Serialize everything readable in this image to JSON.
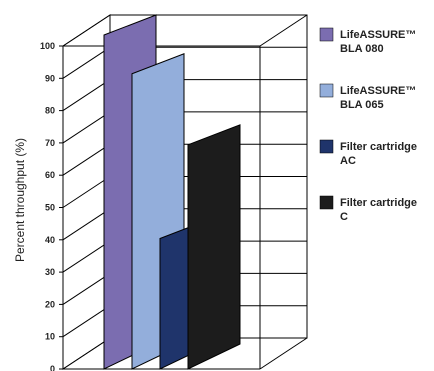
{
  "chart_data": {
    "type": "bar",
    "style": "3d-clustered",
    "ylabel": "Percent throughput (%)",
    "ylim": [
      0,
      100
    ],
    "yticks": [
      0,
      10,
      20,
      30,
      40,
      50,
      60,
      70,
      80,
      90,
      100
    ],
    "grid": true,
    "legend_position": "right",
    "series": [
      {
        "name": "LifeASSURE™ BLA 080",
        "legend_lines": [
          "LifeASSURE™",
          "BLA 080"
        ],
        "value": 100,
        "color": "#7b6db0"
      },
      {
        "name": "LifeASSURE™ BLA 065",
        "legend_lines": [
          "LifeASSURE™",
          "BLA 065"
        ],
        "value": 88,
        "color": "#93aedb"
      },
      {
        "name": "Filter cartridge AC",
        "legend_lines": [
          "Filter cartridge",
          "AC"
        ],
        "value": 37,
        "color": "#1f346b"
      },
      {
        "name": "Filter cartridge C",
        "legend_lines": [
          "Filter cartridge",
          "C"
        ],
        "value": 66,
        "color": "#1c1c1c"
      }
    ]
  }
}
